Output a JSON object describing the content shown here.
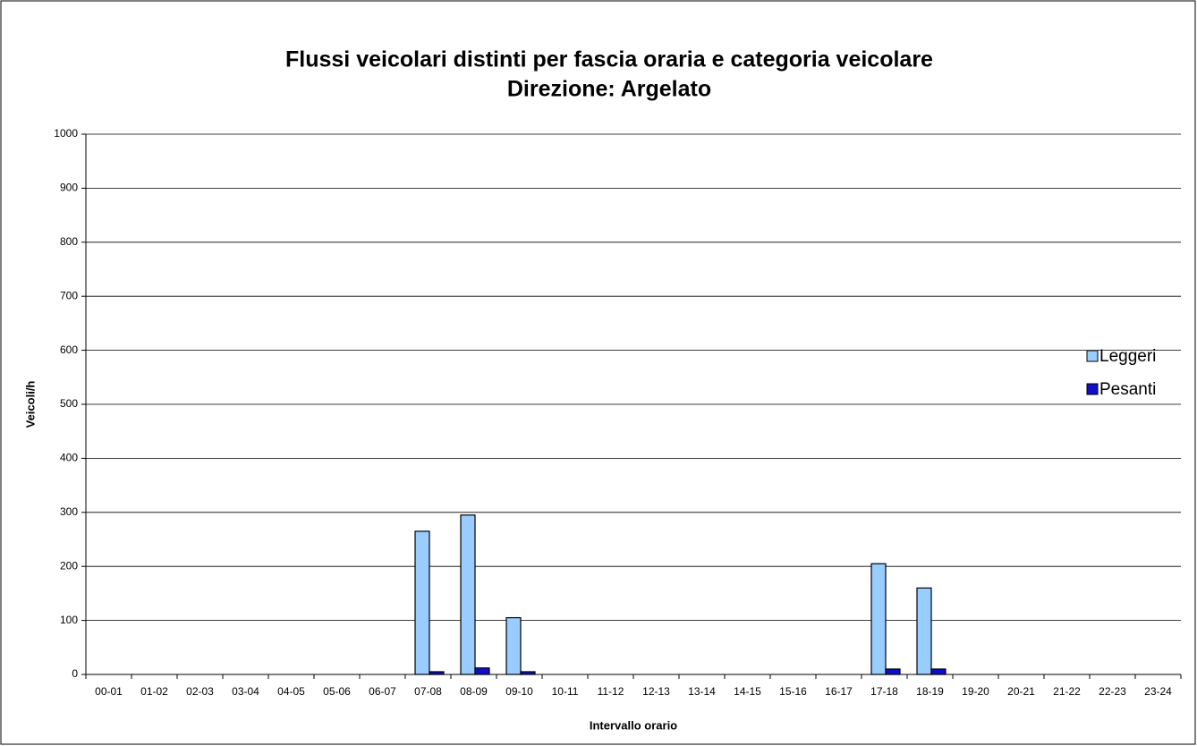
{
  "chart_data": {
    "type": "bar",
    "title": "Flussi veicolari distinti per fascia oraria e categoria veicolare",
    "subtitle": "Direzione: Argelato",
    "x_label": "Intervallo orario",
    "y_label": "Veicoli/h",
    "categories": [
      "00-01",
      "01-02",
      "02-03",
      "03-04",
      "04-05",
      "05-06",
      "06-07",
      "07-08",
      "08-09",
      "09-10",
      "10-11",
      "11-12",
      "12-13",
      "13-14",
      "14-15",
      "15-16",
      "16-17",
      "17-18",
      "18-19",
      "19-20",
      "20-21",
      "21-22",
      "22-23",
      "23-24"
    ],
    "series": [
      {
        "name": "Leggeri",
        "color": "#99ccff",
        "values": [
          0,
          0,
          0,
          0,
          0,
          0,
          0,
          265,
          295,
          105,
          0,
          0,
          0,
          0,
          0,
          0,
          0,
          205,
          160,
          0,
          0,
          0,
          0,
          0
        ]
      },
      {
        "name": "Pesanti",
        "color": "#1010c8",
        "values": [
          0,
          0,
          0,
          0,
          0,
          0,
          0,
          5,
          12,
          5,
          0,
          0,
          0,
          0,
          0,
          0,
          0,
          10,
          10,
          0,
          0,
          0,
          0,
          0
        ]
      }
    ],
    "ylim": [
      0,
      1000
    ],
    "yticks": [
      0,
      100,
      200,
      300,
      400,
      500,
      600,
      700,
      800,
      900,
      1000
    ],
    "grid": true,
    "legend": "right"
  }
}
